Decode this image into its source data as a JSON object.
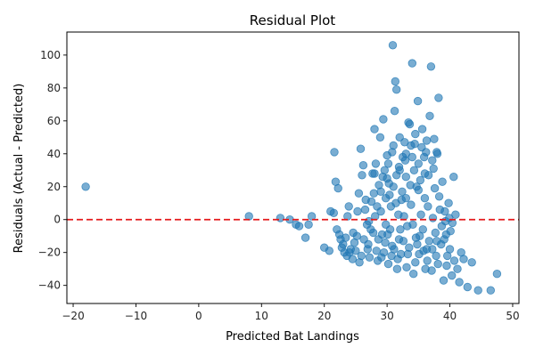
{
  "chart_data": {
    "type": "scatter",
    "title": "Residual Plot",
    "xlabel": "Predicted Bat Landings",
    "ylabel": "Residuals (Actual - Predicted)",
    "xlim": [
      -21,
      51
    ],
    "ylim": [
      -51,
      114
    ],
    "xticks": [
      -20,
      -10,
      0,
      10,
      20,
      30,
      40,
      50
    ],
    "yticks": [
      -40,
      -20,
      0,
      20,
      40,
      60,
      80,
      100
    ],
    "reference_line": {
      "y": 0,
      "style": "dashed",
      "color": "#e41a1c"
    },
    "grid": false,
    "colors": {
      "points": "#1f77b4",
      "points_alpha": 0.6,
      "reference": "#e41a1c"
    },
    "series": [
      {
        "points": [
          [
            -18,
            20
          ],
          [
            8,
            2
          ],
          [
            13,
            1
          ],
          [
            14.5,
            0
          ],
          [
            15.5,
            -3
          ],
          [
            16,
            -4
          ],
          [
            17,
            -11
          ],
          [
            17.5,
            -3
          ],
          [
            18,
            2
          ],
          [
            20,
            -17
          ],
          [
            20.8,
            -19
          ],
          [
            21,
            5
          ],
          [
            21.5,
            4
          ],
          [
            21.8,
            23
          ],
          [
            21.6,
            41
          ],
          [
            22.2,
            19
          ],
          [
            22,
            -6
          ],
          [
            22.4,
            -9
          ],
          [
            22.6,
            -12
          ],
          [
            23,
            -15
          ],
          [
            23.2,
            -20
          ],
          [
            23.6,
            -22
          ],
          [
            23.7,
            2
          ],
          [
            23.9,
            8
          ],
          [
            24.2,
            -18
          ],
          [
            24.5,
            -24
          ],
          [
            25.2,
            -10
          ],
          [
            25.5,
            16
          ],
          [
            25.8,
            43
          ],
          [
            26,
            27
          ],
          [
            26.2,
            33
          ],
          [
            26.5,
            6
          ],
          [
            26.8,
            -3
          ],
          [
            27,
            -15
          ],
          [
            27.2,
            -23
          ],
          [
            27.5,
            11
          ],
          [
            27.7,
            28
          ],
          [
            27.8,
            -8
          ],
          [
            28,
            55
          ],
          [
            28.2,
            34
          ],
          [
            28.5,
            -25
          ],
          [
            28.7,
            21
          ],
          [
            28.9,
            50
          ],
          [
            29,
            5
          ],
          [
            29.2,
            -9
          ],
          [
            29.4,
            61
          ],
          [
            29.5,
            -20
          ],
          [
            29.6,
            30
          ],
          [
            29.8,
            13
          ],
          [
            30,
            39
          ],
          [
            30.2,
            -27
          ],
          [
            30.3,
            22
          ],
          [
            30.5,
            -6
          ],
          [
            30.6,
            8
          ],
          [
            30.8,
            -16
          ],
          [
            30.9,
            106
          ],
          [
            31,
            45
          ],
          [
            31.2,
            66
          ],
          [
            31.3,
            84
          ],
          [
            31.5,
            79
          ],
          [
            31.6,
            -30
          ],
          [
            31.8,
            3
          ],
          [
            31.9,
            32
          ],
          [
            32,
            50
          ],
          [
            32.2,
            -21
          ],
          [
            32.4,
            17
          ],
          [
            32.6,
            -13
          ],
          [
            32.8,
            47
          ],
          [
            33,
            26
          ],
          [
            33.2,
            -4
          ],
          [
            33.4,
            59
          ],
          [
            33.6,
            58
          ],
          [
            33.8,
            9
          ],
          [
            34,
            95
          ],
          [
            34.2,
            -33
          ],
          [
            34.4,
            46
          ],
          [
            34.5,
            -26
          ],
          [
            34.7,
            20
          ],
          [
            34.9,
            72
          ],
          [
            35,
            34
          ],
          [
            35.2,
            -10
          ],
          [
            35.4,
            3
          ],
          [
            35.6,
            55
          ],
          [
            35.8,
            -19
          ],
          [
            36,
            13
          ],
          [
            36.2,
            41
          ],
          [
            36.4,
            -25
          ],
          [
            36.6,
            27
          ],
          [
            36.8,
            63
          ],
          [
            37,
            93
          ],
          [
            37.1,
            -31
          ],
          [
            37.3,
            1
          ],
          [
            37.5,
            49
          ],
          [
            37.6,
            19
          ],
          [
            37.8,
            -22
          ],
          [
            38,
            40
          ],
          [
            38.2,
            74
          ],
          [
            38.4,
            6
          ],
          [
            38.6,
            -15
          ],
          [
            38.8,
            23
          ],
          [
            39,
            -37
          ],
          [
            39.3,
            -1
          ],
          [
            39.5,
            -28
          ],
          [
            39.8,
            10
          ],
          [
            40,
            -18
          ],
          [
            40.3,
            -34
          ],
          [
            40.6,
            26
          ],
          [
            40.9,
            3
          ],
          [
            41.2,
            -30
          ],
          [
            41.5,
            -38
          ],
          [
            41.8,
            -20
          ],
          [
            42.2,
            -24
          ],
          [
            42.8,
            -41
          ],
          [
            43.5,
            -26
          ],
          [
            44.5,
            -43
          ],
          [
            46.5,
            -43
          ],
          [
            47.5,
            -33
          ],
          [
            24.8,
            -14
          ],
          [
            25,
            -19
          ],
          [
            25.6,
            -26
          ],
          [
            26.3,
            -12
          ],
          [
            27.4,
            -6
          ],
          [
            28.1,
            2
          ],
          [
            28.6,
            -12
          ],
          [
            29.1,
            -23
          ],
          [
            29.8,
            -3
          ],
          [
            30.1,
            -9
          ],
          [
            31.1,
            -18
          ],
          [
            31.7,
            -24
          ],
          [
            32.1,
            -6
          ],
          [
            32.7,
            2
          ],
          [
            33.1,
            -29
          ],
          [
            33.5,
            -17
          ],
          [
            34.1,
            -3
          ],
          [
            34.6,
            -11
          ],
          [
            35.1,
            -21
          ],
          [
            35.7,
            -6
          ],
          [
            36.1,
            -30
          ],
          [
            36.7,
            -13
          ],
          [
            37.2,
            -18
          ],
          [
            37.7,
            -8
          ],
          [
            38.1,
            -27
          ],
          [
            38.7,
            -4
          ],
          [
            39.1,
            -12
          ],
          [
            39.6,
            -22
          ],
          [
            40.1,
            -7
          ],
          [
            40.7,
            -25
          ],
          [
            25.3,
            5
          ],
          [
            26.6,
            12
          ],
          [
            27.1,
            -1
          ],
          [
            27.9,
            16
          ],
          [
            28.4,
            8
          ],
          [
            29.3,
            26
          ],
          [
            30.4,
            15
          ],
          [
            31.4,
            10
          ],
          [
            32.3,
            12
          ],
          [
            32.9,
            36
          ],
          [
            33.7,
            21
          ],
          [
            34.3,
            30
          ],
          [
            35.3,
            24
          ],
          [
            35.9,
            38
          ],
          [
            36.5,
            8
          ],
          [
            37.4,
            31
          ],
          [
            38.3,
            14
          ],
          [
            39.2,
            5
          ],
          [
            39.9,
            1
          ],
          [
            40.4,
            -2
          ],
          [
            22.8,
            -17
          ],
          [
            23.4,
            -11
          ],
          [
            24,
            -20
          ],
          [
            24.6,
            -8
          ],
          [
            25.9,
            -22
          ],
          [
            26.9,
            -18
          ],
          [
            28.3,
            -19
          ],
          [
            29.7,
            -14
          ],
          [
            30.7,
            -22
          ],
          [
            31.9,
            -12
          ],
          [
            33.3,
            -21
          ],
          [
            34.8,
            -15
          ],
          [
            36.3,
            -18
          ],
          [
            37.9,
            -13
          ],
          [
            39.4,
            -9
          ],
          [
            30.2,
            34
          ],
          [
            30.8,
            41
          ],
          [
            31.5,
            27
          ],
          [
            32.5,
            38
          ],
          [
            33.8,
            45
          ],
          [
            34.5,
            52
          ],
          [
            35.5,
            44
          ],
          [
            36.3,
            48
          ],
          [
            37.2,
            36
          ],
          [
            37.9,
            41
          ],
          [
            33,
            40
          ],
          [
            34,
            38
          ],
          [
            32,
            30
          ],
          [
            36,
            28
          ],
          [
            35,
            18
          ],
          [
            33,
            13
          ],
          [
            30,
            25
          ],
          [
            31,
            20
          ],
          [
            29,
            17
          ],
          [
            28,
            28
          ]
        ]
      }
    ]
  }
}
